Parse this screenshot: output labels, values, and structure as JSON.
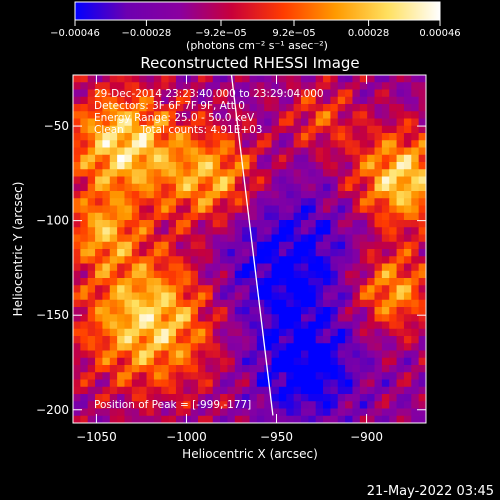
{
  "chart_data": {
    "type": "heatmap",
    "title": "Reconstructed RHESSI Image",
    "xlabel": "Heliocentric X (arcsec)",
    "ylabel": "Heliocentric Y (arcsec)",
    "x_ticks": [
      "−1050",
      "−1000",
      "−950",
      "−900"
    ],
    "x_tick_values": [
      -1050,
      -1000,
      -950,
      -900
    ],
    "y_ticks": [
      "−50",
      "−100",
      "−150",
      "−200"
    ],
    "y_tick_values": [
      -50,
      -100,
      -150,
      -200
    ],
    "xlim": [
      -1063,
      -867
    ],
    "ylim": [
      -207,
      -23
    ],
    "grid": false,
    "colorbar": {
      "tick_labels": [
        "−0.00046",
        "−0.00028",
        "−9.2e−05",
        "9.2e−05",
        "0.00028",
        "0.00046"
      ],
      "tick_values": [
        -0.00046,
        -0.00028,
        -9.2e-05,
        9.2e-05,
        0.00028,
        0.00046
      ],
      "range": [
        -0.00046,
        0.00046
      ],
      "units": "(photons cm⁻² s⁻¹ asec⁻²)",
      "colors": [
        "#0000ff",
        "#6d00b0",
        "#8a00a0",
        "#c8003a",
        "#ff3c00",
        "#ff9a00",
        "#ffe060",
        "#ffffff"
      ]
    },
    "limb_line": {
      "x": [
        -975,
        -952
      ],
      "y": [
        -23,
        -203
      ]
    },
    "peak": {
      "x": -999,
      "y": -177
    },
    "annotations": [
      "29-Dec-2014 23:23:40.000 to 23:29:04.000",
      "Detectors: 3F 6F 7F 9F, Att 0",
      "Energy Range: 25.0 - 50.0 keV",
      "Clean     Total counts: 4.91E+03",
      "Position of Peak = [-999,-177]"
    ],
    "footer_date": "21-May-2022 03:45"
  }
}
